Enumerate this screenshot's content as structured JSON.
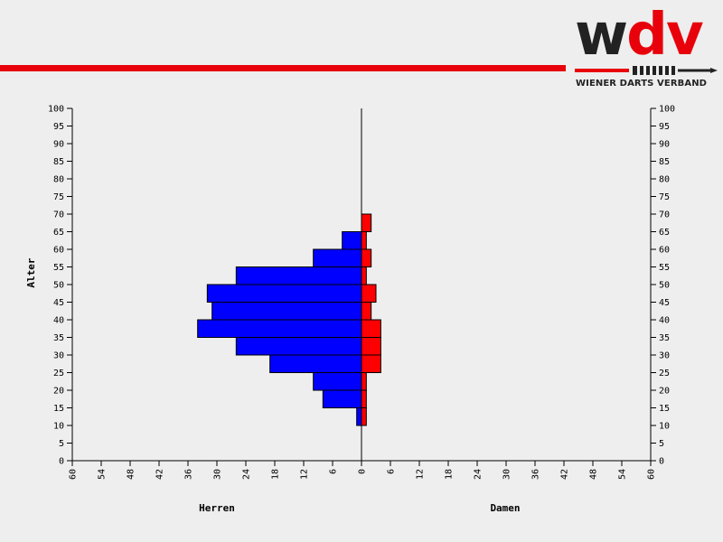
{
  "brand": {
    "logo_text_a": "w",
    "logo_text_b": "dv",
    "subtitle": "WIENER DARTS VERBAND",
    "accent": "#e8000b",
    "dark": "#222222"
  },
  "chart_data": {
    "type": "bar",
    "orientation": "horizontal-population-pyramid",
    "ylabel": "Alter",
    "x_left_label": "Herren",
    "x_right_label": "Damen",
    "ylim": [
      0,
      100
    ],
    "y_ticks": [
      0,
      5,
      10,
      15,
      20,
      25,
      30,
      35,
      40,
      45,
      50,
      55,
      60,
      65,
      70,
      75,
      80,
      85,
      90,
      95,
      100
    ],
    "xlim": [
      0,
      60
    ],
    "x_ticks": [
      60,
      54,
      48,
      42,
      36,
      30,
      24,
      18,
      12,
      6,
      0
    ],
    "x_ticks_right": [
      0,
      6,
      12,
      18,
      24,
      30,
      36,
      42,
      48,
      54,
      60
    ],
    "bin_width": 5,
    "grid": false,
    "series": [
      {
        "name": "Herren",
        "color": "#0000ff",
        "side": "left",
        "bins": [
          {
            "from": 10,
            "to": 15,
            "value": 1
          },
          {
            "from": 15,
            "to": 20,
            "value": 8
          },
          {
            "from": 20,
            "to": 25,
            "value": 10
          },
          {
            "from": 25,
            "to": 30,
            "value": 19
          },
          {
            "from": 30,
            "to": 35,
            "value": 26
          },
          {
            "from": 35,
            "to": 40,
            "value": 34
          },
          {
            "from": 40,
            "to": 45,
            "value": 31
          },
          {
            "from": 45,
            "to": 50,
            "value": 32
          },
          {
            "from": 50,
            "to": 55,
            "value": 26
          },
          {
            "from": 55,
            "to": 60,
            "value": 10
          },
          {
            "from": 60,
            "to": 65,
            "value": 4
          }
        ]
      },
      {
        "name": "Damen",
        "color": "#ff0000",
        "side": "right",
        "bins": [
          {
            "from": 10,
            "to": 15,
            "value": 1
          },
          {
            "from": 15,
            "to": 20,
            "value": 1
          },
          {
            "from": 20,
            "to": 25,
            "value": 1
          },
          {
            "from": 25,
            "to": 30,
            "value": 4
          },
          {
            "from": 30,
            "to": 35,
            "value": 4
          },
          {
            "from": 35,
            "to": 40,
            "value": 4
          },
          {
            "from": 40,
            "to": 45,
            "value": 2
          },
          {
            "from": 45,
            "to": 50,
            "value": 3
          },
          {
            "from": 50,
            "to": 55,
            "value": 1
          },
          {
            "from": 55,
            "to": 60,
            "value": 2
          },
          {
            "from": 60,
            "to": 65,
            "value": 1
          },
          {
            "from": 65,
            "to": 70,
            "value": 2
          }
        ]
      }
    ]
  }
}
